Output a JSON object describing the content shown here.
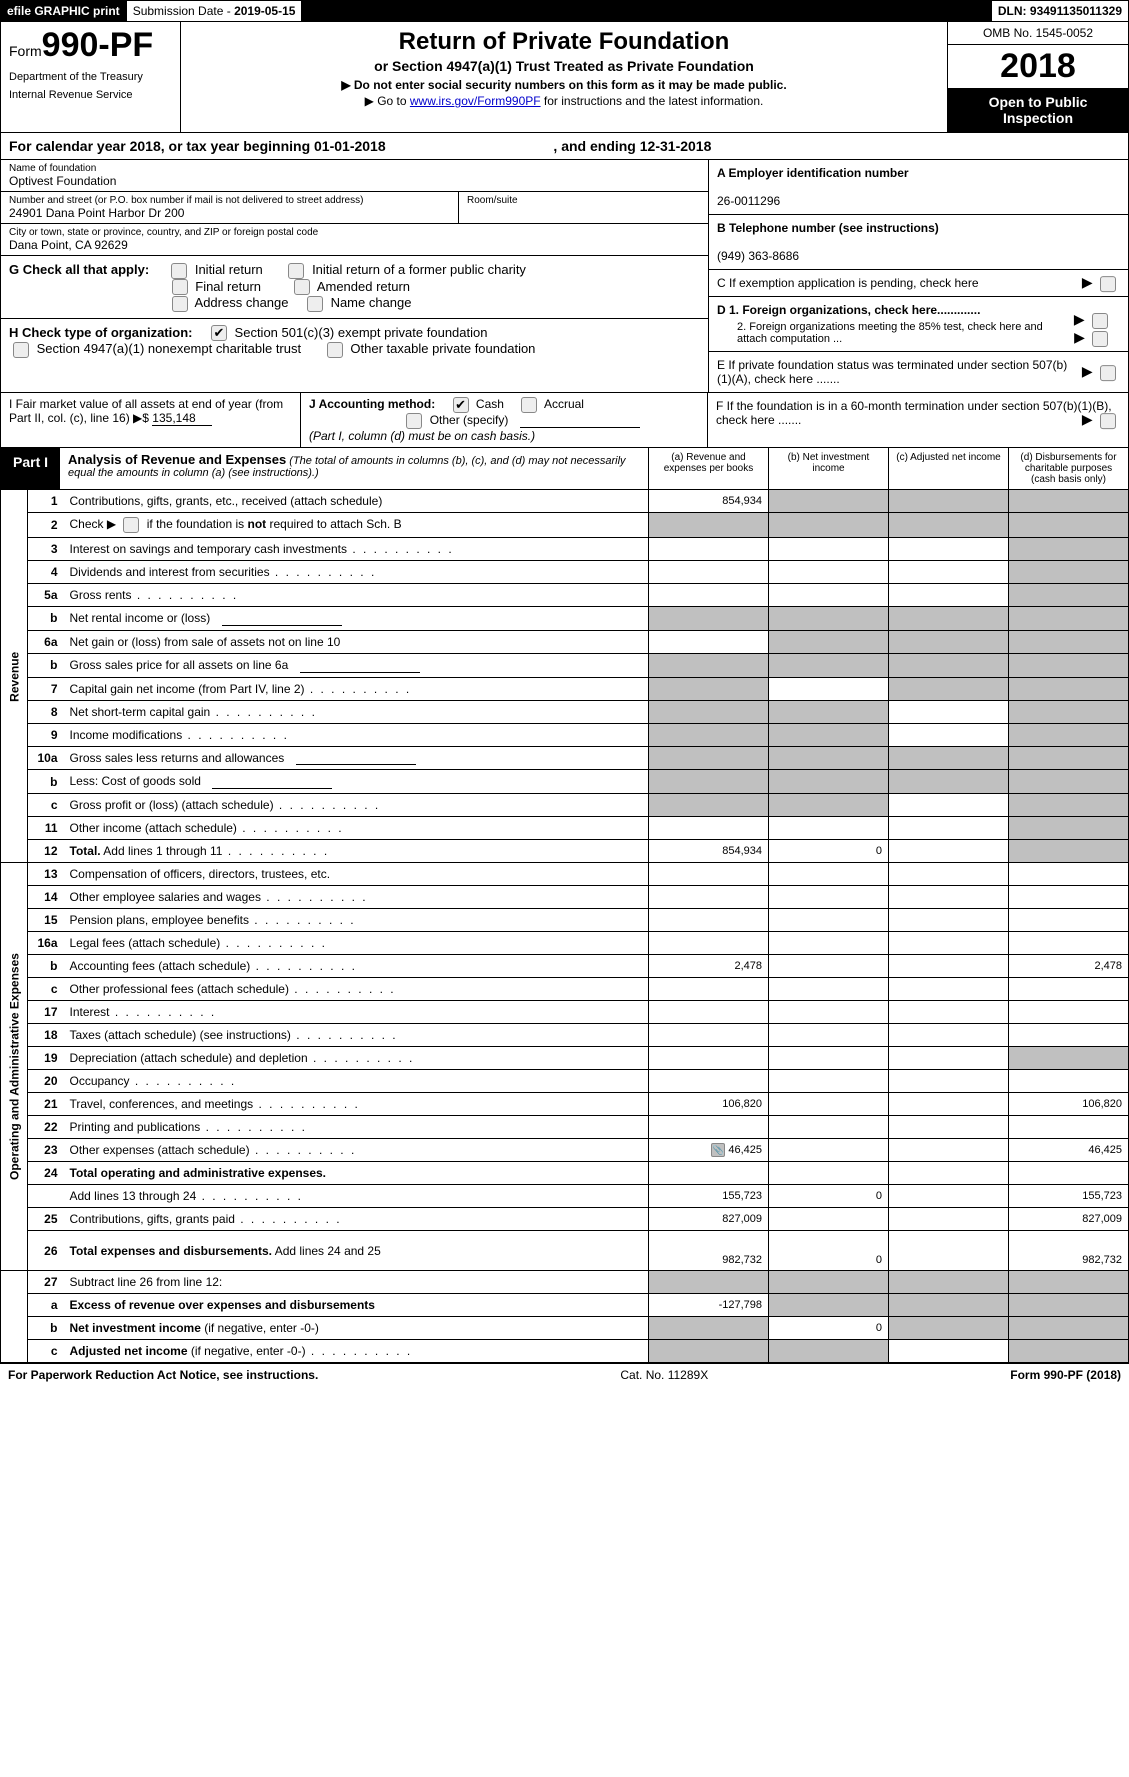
{
  "topbar": {
    "efile": "efile GRAPHIC print",
    "submission_label": "Submission Date - ",
    "submission_date": "2019-05-15",
    "dln_label": "DLN: ",
    "dln": "93491135011329"
  },
  "header": {
    "form_word": "Form",
    "form_no": "990-PF",
    "dept1": "Department of the Treasury",
    "dept2": "Internal Revenue Service",
    "title": "Return of Private Foundation",
    "subtitle": "or Section 4947(a)(1) Trust Treated as Private Foundation",
    "note": "▶ Do not enter social security numbers on this form as it may be made public.",
    "goto_pre": "▶ Go to ",
    "goto_link": "www.irs.gov/Form990PF",
    "goto_post": " for instructions and the latest information.",
    "omb": "OMB No. 1545-0052",
    "year": "2018",
    "open": "Open to Public Inspection"
  },
  "calyear": {
    "pre": "For calendar year 2018, or tax year beginning ",
    "begin": "01-01-2018",
    "mid": ", and ending ",
    "end": "12-31-2018"
  },
  "id": {
    "name_label": "Name of foundation",
    "name": "Optivest Foundation",
    "street_label": "Number and street (or P.O. box number if mail is not delivered to street address)",
    "street": "24901 Dana Point Harbor Dr 200",
    "room_label": "Room/suite",
    "city_label": "City or town, state or province, country, and ZIP or foreign postal code",
    "city": "Dana Point, CA  92629"
  },
  "right": {
    "A_label": "A Employer identification number",
    "A_val": "26-0011296",
    "B_label": "B Telephone number (see instructions)",
    "B_val": "(949) 363-8686",
    "C": "C  If exemption application is pending, check here",
    "D1": "D 1. Foreign organizations, check here.............",
    "D2": "2. Foreign organizations meeting the 85% test, check here and attach computation ...",
    "E": "E  If private foundation status was terminated under section 507(b)(1)(A), check here .......",
    "F": "F  If the foundation is in a 60-month termination under section 507(b)(1)(B), check here ......."
  },
  "G": {
    "label": "G Check all that apply:",
    "c1": "Initial return",
    "c2": "Initial return of a former public charity",
    "c3": "Final return",
    "c4": "Amended return",
    "c5": "Address change",
    "c6": "Name change"
  },
  "H": {
    "label": "H Check type of organization:",
    "c1": "Section 501(c)(3) exempt private foundation",
    "c2": "Section 4947(a)(1) nonexempt charitable trust",
    "c3": "Other taxable private foundation"
  },
  "I": {
    "label": "I Fair market value of all assets at end of year (from Part II, col. (c), line 16) ▶$",
    "val": "135,148"
  },
  "J": {
    "label": "J Accounting method:",
    "c1": "Cash",
    "c2": "Accrual",
    "c3": "Other (specify)",
    "note": "(Part I, column (d) must be on cash basis.)"
  },
  "part1": {
    "label": "Part I",
    "title": "Analysis of Revenue and Expenses",
    "note": "(The total of amounts in columns (b), (c), and (d) may not necessarily equal the amounts in column (a) (see instructions).)",
    "cols": {
      "a": "(a)    Revenue and expenses per books",
      "b": "(b)    Net investment income",
      "c": "(c)    Adjusted net income",
      "d": "(d)    Disbursements for charitable purposes (cash basis only)"
    }
  },
  "sections": {
    "revenue": "Revenue",
    "opadmin": "Operating and Administrative Expenses"
  },
  "rows": [
    {
      "n": "1",
      "d": "Contributions, gifts, grants, etc., received (attach schedule)",
      "a": "854,934",
      "bs": true,
      "cs": true,
      "ds": true
    },
    {
      "n": "2",
      "d": "Check ▶ ☐ if the foundation is <b>not</b> required to attach Sch. B",
      "as": true,
      "bs": true,
      "cs": true,
      "ds": true,
      "chk": true
    },
    {
      "n": "3",
      "d": "Interest on savings and temporary cash investments",
      "ds": true,
      "dots": true
    },
    {
      "n": "4",
      "d": "Dividends and interest from securities",
      "ds": true,
      "dots": true
    },
    {
      "n": "5a",
      "d": "Gross rents",
      "ds": true,
      "dots": true
    },
    {
      "n": "b",
      "d": "Net rental income or (loss)",
      "sub": true,
      "as": true,
      "bs": true,
      "cs": true,
      "ds": true
    },
    {
      "n": "6a",
      "d": "Net gain or (loss) from sale of assets not on line 10",
      "bs": true,
      "cs": true,
      "ds": true
    },
    {
      "n": "b",
      "d": "Gross sales price for all assets on line 6a",
      "sub": true,
      "as": true,
      "bs": true,
      "cs": true,
      "ds": true
    },
    {
      "n": "7",
      "d": "Capital gain net income (from Part IV, line 2)",
      "as": true,
      "cs": true,
      "ds": true,
      "dots": true
    },
    {
      "n": "8",
      "d": "Net short-term capital gain",
      "as": true,
      "bs": true,
      "ds": true,
      "dots": true
    },
    {
      "n": "9",
      "d": "Income modifications",
      "as": true,
      "bs": true,
      "ds": true,
      "dots": true
    },
    {
      "n": "10a",
      "d": "Gross sales less returns and allowances",
      "sub": true,
      "as": true,
      "bs": true,
      "cs": true,
      "ds": true
    },
    {
      "n": "b",
      "d": "Less: Cost of goods sold",
      "sub": true,
      "as": true,
      "bs": true,
      "cs": true,
      "ds": true,
      "dots": true
    },
    {
      "n": "c",
      "d": "Gross profit or (loss) (attach schedule)",
      "as": true,
      "bs": true,
      "ds": true,
      "dots": true
    },
    {
      "n": "11",
      "d": "Other income (attach schedule)",
      "ds": true,
      "dots": true
    },
    {
      "n": "12",
      "d": "<b>Total.</b> Add lines 1 through 11",
      "a": "854,934",
      "b": "0",
      "ds": true,
      "dots": true
    }
  ],
  "rows2": [
    {
      "n": "13",
      "d": "Compensation of officers, directors, trustees, etc."
    },
    {
      "n": "14",
      "d": "Other employee salaries and wages",
      "dots": true
    },
    {
      "n": "15",
      "d": "Pension plans, employee benefits",
      "dots": true
    },
    {
      "n": "16a",
      "d": "Legal fees (attach schedule)",
      "dots": true
    },
    {
      "n": "b",
      "d": "Accounting fees (attach schedule)",
      "a": "2,478",
      "dv": "2,478",
      "dots": true
    },
    {
      "n": "c",
      "d": "Other professional fees (attach schedule)",
      "dots": true
    },
    {
      "n": "17",
      "d": "Interest",
      "dots": true
    },
    {
      "n": "18",
      "d": "Taxes (attach schedule) (see instructions)",
      "dots": true
    },
    {
      "n": "19",
      "d": "Depreciation (attach schedule) and depletion",
      "ds": true,
      "dots": true
    },
    {
      "n": "20",
      "d": "Occupancy",
      "dots": true
    },
    {
      "n": "21",
      "d": "Travel, conferences, and meetings",
      "a": "106,820",
      "dv": "106,820",
      "dots": true
    },
    {
      "n": "22",
      "d": "Printing and publications",
      "dots": true
    },
    {
      "n": "23",
      "d": "Other expenses (attach schedule)",
      "a": "46,425",
      "dv": "46,425",
      "icon": true,
      "dots": true
    },
    {
      "n": "24",
      "d": "<b>Total operating and administrative expenses.</b>",
      "noval": true
    },
    {
      "n": "",
      "d": "Add lines 13 through 24",
      "a": "155,723",
      "b": "0",
      "dv": "155,723",
      "dots": true
    },
    {
      "n": "25",
      "d": "Contributions, gifts, grants paid",
      "a": "827,009",
      "dv": "827,009",
      "dots": true
    },
    {
      "n": "26",
      "d": "<b>Total expenses and disbursements.</b> Add lines 24 and 25",
      "a": "982,732",
      "b": "0",
      "dv": "982,732",
      "tall": true
    }
  ],
  "rows3": [
    {
      "n": "27",
      "d": "Subtract line 26 from line 12:",
      "as": true,
      "bs": true,
      "cs": true,
      "ds": true
    },
    {
      "n": "a",
      "d": "<b>Excess of revenue over expenses and disbursements</b>",
      "a": "-127,798",
      "bs": true,
      "cs": true,
      "ds": true
    },
    {
      "n": "b",
      "d": "<b>Net investment income</b> (if negative, enter -0-)",
      "as": true,
      "b": "0",
      "cs": true,
      "ds": true
    },
    {
      "n": "c",
      "d": "<b>Adjusted net income</b> (if negative, enter -0-)",
      "as": true,
      "bs": true,
      "ds": true,
      "dots": true
    }
  ],
  "footer": {
    "left": "For Paperwork Reduction Act Notice, see instructions.",
    "mid": "Cat. No. 11289X",
    "right": "Form 990-PF (2018)"
  }
}
